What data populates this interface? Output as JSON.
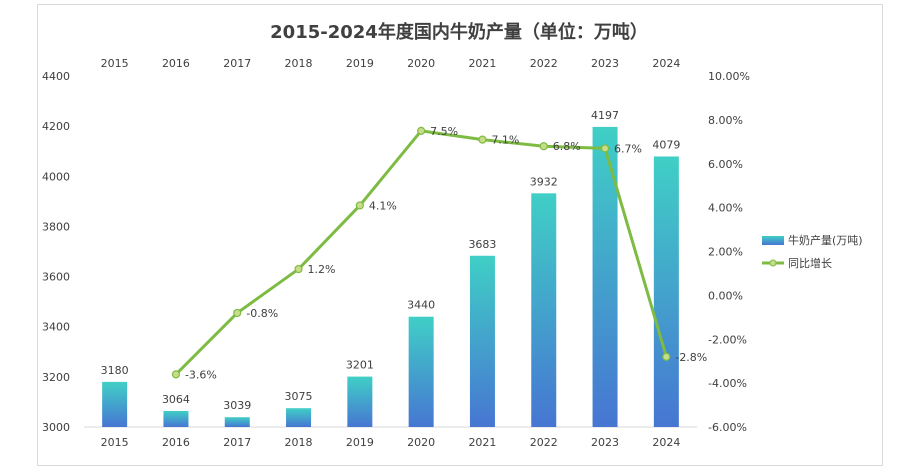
{
  "chart_data": {
    "type": "bar",
    "title": "2015-2024年度国内牛奶产量（单位：万吨）",
    "categories": [
      "2015",
      "2016",
      "2017",
      "2018",
      "2019",
      "2020",
      "2021",
      "2022",
      "2023",
      "2024"
    ],
    "series": [
      {
        "name": "牛奶产量(万吨)",
        "type": "bar",
        "axis": "left",
        "values": [
          3180,
          3064,
          3039,
          3075,
          3201,
          3440,
          3683,
          3932,
          4197,
          4079
        ],
        "labels": [
          "3180",
          "3064",
          "3039",
          "3075",
          "3201",
          "3440",
          "3683",
          "3932",
          "4197",
          "4079"
        ]
      },
      {
        "name": "同比增长",
        "type": "line",
        "axis": "right",
        "values": [
          null,
          -3.6,
          -0.8,
          1.2,
          4.1,
          7.5,
          7.1,
          6.8,
          6.7,
          -2.8
        ],
        "labels": [
          "",
          "-3.6%",
          "-0.8%",
          "1.2%",
          "4.1%",
          "7.5%",
          "7.1%",
          "6.8%",
          "6.7%",
          "-2.8%"
        ]
      }
    ],
    "y_left": {
      "min": 3000,
      "max": 4400,
      "ticks": [
        "3000",
        "3200",
        "3400",
        "3600",
        "3800",
        "4000",
        "4200",
        "4400"
      ]
    },
    "y_right": {
      "min": -6,
      "max": 10,
      "ticks": [
        "-6.00%",
        "-4.00%",
        "-2.00%",
        "0.00%",
        "2.00%",
        "4.00%",
        "6.00%",
        "8.00%",
        "10.00%"
      ]
    },
    "grid": false,
    "legend_position": "right",
    "colors": {
      "bar_top": "#40cfc6",
      "bar_bottom": "#4676d2",
      "line": "#7dbb42",
      "marker_fill": "#c8dc8a"
    }
  }
}
